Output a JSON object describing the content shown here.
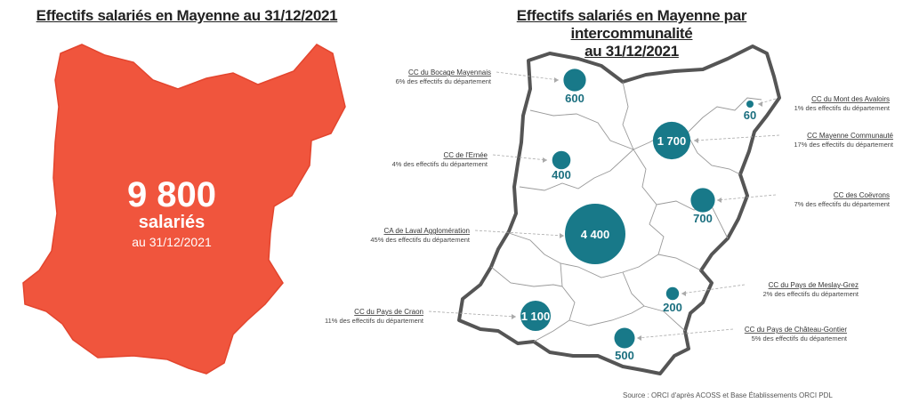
{
  "left_map": {
    "title": "Effectifs salariés en Mayenne au 31/12/2021",
    "total_value": "9 800",
    "unit": "salariés",
    "date": "au 31/12/2021",
    "fill_color": "#f0553d"
  },
  "right_map": {
    "title_line1": "Effectifs salariés en Mayenne par intercommunalité",
    "title_line2": "au 31/12/2021",
    "bubble_color": "#187989",
    "units": [
      {
        "name": "CC du Bocage Mayennais",
        "share": "6% des effectifs du département",
        "value": 600,
        "label": "600"
      },
      {
        "name": "CC du Mont des Avaloirs",
        "share": "1% des effectifs du département",
        "value": 60,
        "label": "60"
      },
      {
        "name": "CC Mayenne Communauté",
        "share": "17% des effectifs du département",
        "value": 1700,
        "label": "1 700"
      },
      {
        "name": "CC de l'Ernée",
        "share": "4% des effectifs du département",
        "value": 400,
        "label": "400"
      },
      {
        "name": "CC des Coëvrons",
        "share": "7% des effectifs du département",
        "value": 700,
        "label": "700"
      },
      {
        "name": "CA de Laval Agglomération",
        "share": "45% des effectifs du département",
        "value": 4400,
        "label": "4 400"
      },
      {
        "name": "CC du Pays de Meslay-Grez",
        "share": "2% des effectifs du département",
        "value": 200,
        "label": "200"
      },
      {
        "name": "CC du Pays de Craon",
        "share": "11% des effectifs du département",
        "value": 1100,
        "label": "1 100"
      },
      {
        "name": "CC du Pays de Château-Gontier",
        "share": "5% des effectifs du département",
        "value": 500,
        "label": "500"
      }
    ]
  },
  "source": "Source : ORCI d'après ACOSS et Base Établissements ORCI PDL"
}
